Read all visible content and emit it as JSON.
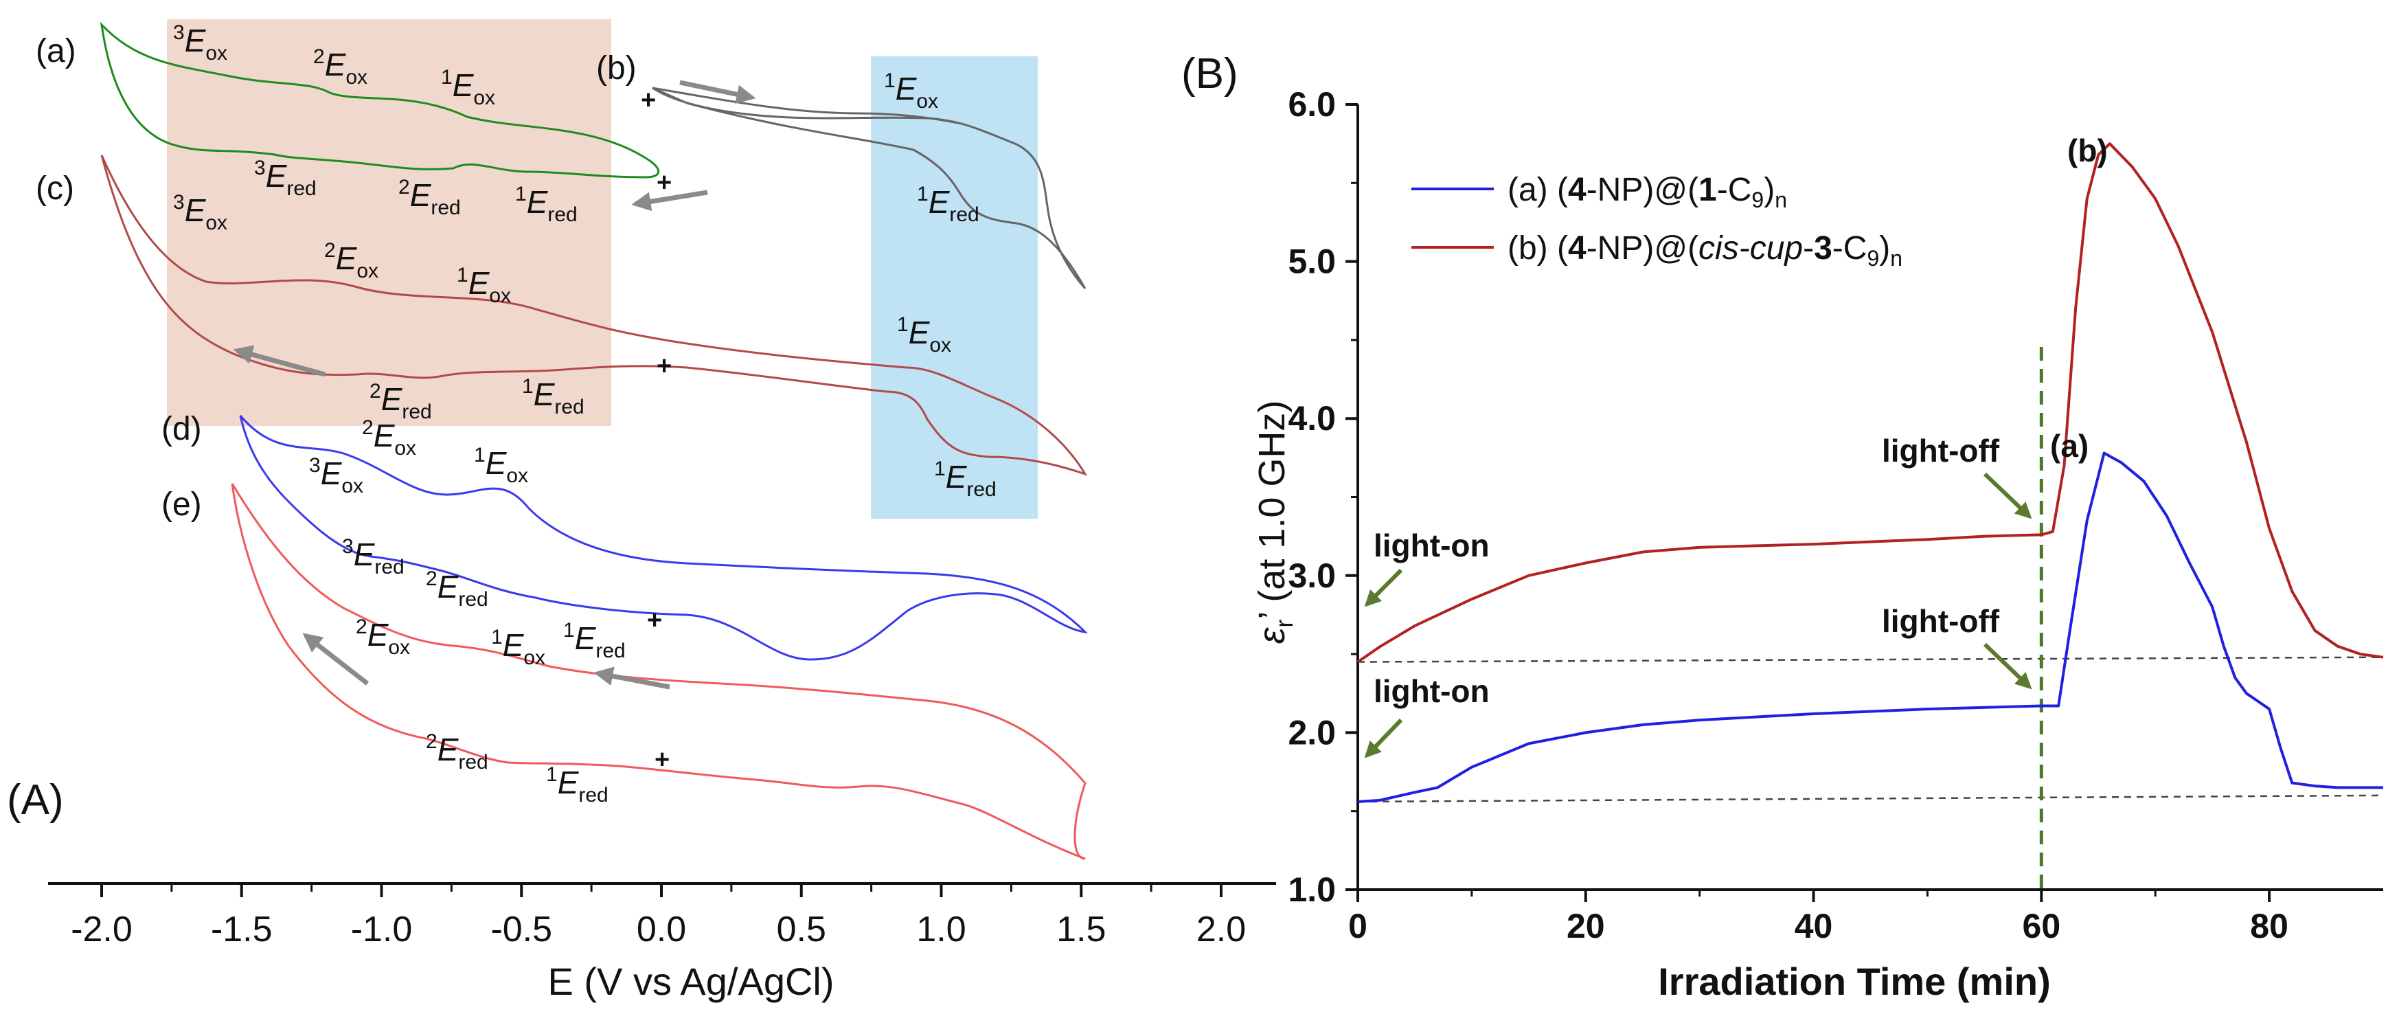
{
  "figure": {
    "panelA_label": "(A)",
    "panelB_label": "(B)"
  },
  "chart_data": [
    {
      "type": "line",
      "panel": "(A)",
      "title": "",
      "xlabel": "E (V vs Ag/AgCl)",
      "ylabel": "",
      "xlim": [
        -2.0,
        2.0
      ],
      "xticks": [
        "-2.0",
        "-1.5",
        "-1.0",
        "-0.5",
        "0.0",
        "0.5",
        "1.0",
        "1.5",
        "2.0"
      ],
      "regions": [
        {
          "name": "negative-window",
          "x_range": [
            -1.75,
            -0.18
          ],
          "color": "#f0d8cc"
        },
        {
          "name": "positive-window",
          "x_range": [
            0.77,
            1.35
          ],
          "color": "#bfe2f4"
        }
      ],
      "markers": {
        "start_symbol": "+"
      },
      "series": [
        {
          "name": "(a)",
          "label": "(a)",
          "color": "#1e8c1e",
          "x_range": [
            -2.0,
            0.0
          ]
        },
        {
          "name": "(b)",
          "label": "(b)",
          "color": "#666666",
          "x_range": [
            0.0,
            1.5
          ]
        },
        {
          "name": "(c)",
          "label": "(c)",
          "color": "#b24a4a",
          "x_range": [
            -2.0,
            1.5
          ]
        },
        {
          "name": "(d)",
          "label": "(d)",
          "color": "#3a3aee",
          "x_range": [
            -1.5,
            1.5
          ]
        },
        {
          "name": "(e)",
          "label": "(e)",
          "color": "#f05a5a",
          "x_range": [
            -1.5,
            1.5
          ]
        }
      ],
      "peak_labels": {
        "a_3ox": {
          "sup": "3",
          "sub": "ox"
        },
        "a_2ox": {
          "sup": "2",
          "sub": "ox"
        },
        "a_1ox": {
          "sup": "1",
          "sub": "ox"
        },
        "a_3red": {
          "sup": "3",
          "sub": "red"
        },
        "a_2red": {
          "sup": "2",
          "sub": "red"
        },
        "a_1red": {
          "sup": "1",
          "sub": "red"
        },
        "b_1ox": {
          "sup": "1",
          "sub": "ox"
        },
        "b_1red": {
          "sup": "1",
          "sub": "red"
        },
        "c_3ox": {
          "sup": "3",
          "sub": "ox"
        },
        "c_2ox": {
          "sup": "2",
          "sub": "ox"
        },
        "c_1ox": {
          "sup": "1",
          "sub": "ox"
        },
        "c_2red": {
          "sup": "2",
          "sub": "red"
        },
        "c_1red": {
          "sup": "1",
          "sub": "red"
        },
        "c_1ox_pos": {
          "sup": "1",
          "sub": "ox"
        },
        "c_1red_pos": {
          "sup": "1",
          "sub": "red"
        },
        "d_2ox": {
          "sup": "2",
          "sub": "ox"
        },
        "d_3ox": {
          "sup": "3",
          "sub": "ox"
        },
        "d_1ox": {
          "sup": "1",
          "sub": "ox"
        },
        "d_3red": {
          "sup": "3",
          "sub": "red"
        },
        "d_2red": {
          "sup": "2",
          "sub": "red"
        },
        "d_1red": {
          "sup": "1",
          "sub": "red"
        },
        "e_2ox": {
          "sup": "2",
          "sub": "ox"
        },
        "e_1ox": {
          "sup": "1",
          "sub": "ox"
        },
        "e_2red": {
          "sup": "2",
          "sub": "red"
        },
        "e_1red": {
          "sup": "1",
          "sub": "red"
        }
      },
      "peak_symbol": "E"
    },
    {
      "type": "line",
      "panel": "(B)",
      "title": "",
      "xlabel": "Irradiation Time (min)",
      "ylabel": "ε",
      "ylabel_sub": "r",
      "ylabel_rest": "’ (at 1.0 GHz)",
      "xlim": [
        0,
        90
      ],
      "ylim": [
        1.0,
        6.0
      ],
      "xticks": [
        0,
        20,
        40,
        60,
        80
      ],
      "xtick_labels": [
        "0",
        "20",
        "40",
        "60",
        "80"
      ],
      "yticks": [
        1.0,
        2.0,
        3.0,
        4.0,
        5.0,
        6.0
      ],
      "ytick_labels": [
        "1.0",
        "2.0",
        "3.0",
        "4.0",
        "5.0",
        "6.0"
      ],
      "grid": false,
      "legend": {
        "placement": "top-left",
        "entries": [
          {
            "name": "(a)",
            "prefix": "(a) (",
            "b1": "4",
            "mid1": "-NP)@(",
            "b2": "1",
            "mid2": "-C",
            "sub1": "9",
            "end": ")",
            "sub2": "n",
            "color": "#2020e0"
          },
          {
            "name": "(b)",
            "prefix": "(b) (",
            "b1": "4",
            "mid1": "-NP)@(",
            "it1": "cis-cup",
            "mid3": "-",
            "b2": "3",
            "mid2": "-C",
            "sub1": "9",
            "end": ")",
            "sub2": "n",
            "color": "#b22222"
          }
        ]
      },
      "series": [
        {
          "name": "(a)",
          "color": "#2020e0",
          "x": [
            0,
            2,
            5,
            7,
            10,
            15,
            20,
            25,
            30,
            40,
            50,
            60,
            61.5,
            62.5,
            64,
            65.5,
            67,
            69,
            71,
            73,
            75,
            76,
            77,
            78,
            80,
            81,
            82,
            84,
            86,
            88,
            90
          ],
          "y": [
            1.56,
            1.57,
            1.62,
            1.65,
            1.78,
            1.93,
            2.0,
            2.05,
            2.08,
            2.12,
            2.15,
            2.17,
            2.17,
            2.65,
            3.35,
            3.78,
            3.72,
            3.6,
            3.38,
            3.08,
            2.8,
            2.55,
            2.35,
            2.25,
            2.15,
            1.9,
            1.68,
            1.66,
            1.65,
            1.65,
            1.65
          ]
        },
        {
          "name": "(b)",
          "color": "#b22222",
          "x": [
            0,
            2,
            5,
            10,
            15,
            20,
            25,
            30,
            40,
            50,
            55,
            60,
            61,
            62,
            63,
            64,
            65,
            66,
            68,
            70,
            72,
            75,
            78,
            80,
            82,
            84,
            86,
            88,
            90
          ],
          "y": [
            2.45,
            2.55,
            2.68,
            2.85,
            3.0,
            3.08,
            3.15,
            3.18,
            3.2,
            3.23,
            3.25,
            3.26,
            3.28,
            3.7,
            4.7,
            5.4,
            5.68,
            5.75,
            5.6,
            5.4,
            5.1,
            4.55,
            3.85,
            3.3,
            2.9,
            2.65,
            2.55,
            2.5,
            2.48
          ]
        }
      ],
      "reference_lines": [
        {
          "name": "baseline-a",
          "y_start": 1.56,
          "y_end": 1.6,
          "style": "dashed"
        },
        {
          "name": "baseline-b",
          "y_start": 2.45,
          "y_end": 2.48,
          "style": "dashed"
        }
      ],
      "vertical_line": {
        "x": 60,
        "style": "dashed",
        "color": "#4a7a2a"
      },
      "annotations": [
        {
          "name": "light-on-b",
          "text": "light-on",
          "series": "(b)"
        },
        {
          "name": "light-off-b",
          "text": "light-off",
          "series": "(b)"
        },
        {
          "name": "light-off-a",
          "text": "light-off",
          "series": "(a)"
        },
        {
          "name": "light-on-a",
          "text": "light-on",
          "series": "(a)"
        }
      ],
      "series_labels": [
        {
          "name": "(b)",
          "text": "(b)"
        },
        {
          "name": "(a)",
          "text": "(a)"
        }
      ]
    }
  ]
}
